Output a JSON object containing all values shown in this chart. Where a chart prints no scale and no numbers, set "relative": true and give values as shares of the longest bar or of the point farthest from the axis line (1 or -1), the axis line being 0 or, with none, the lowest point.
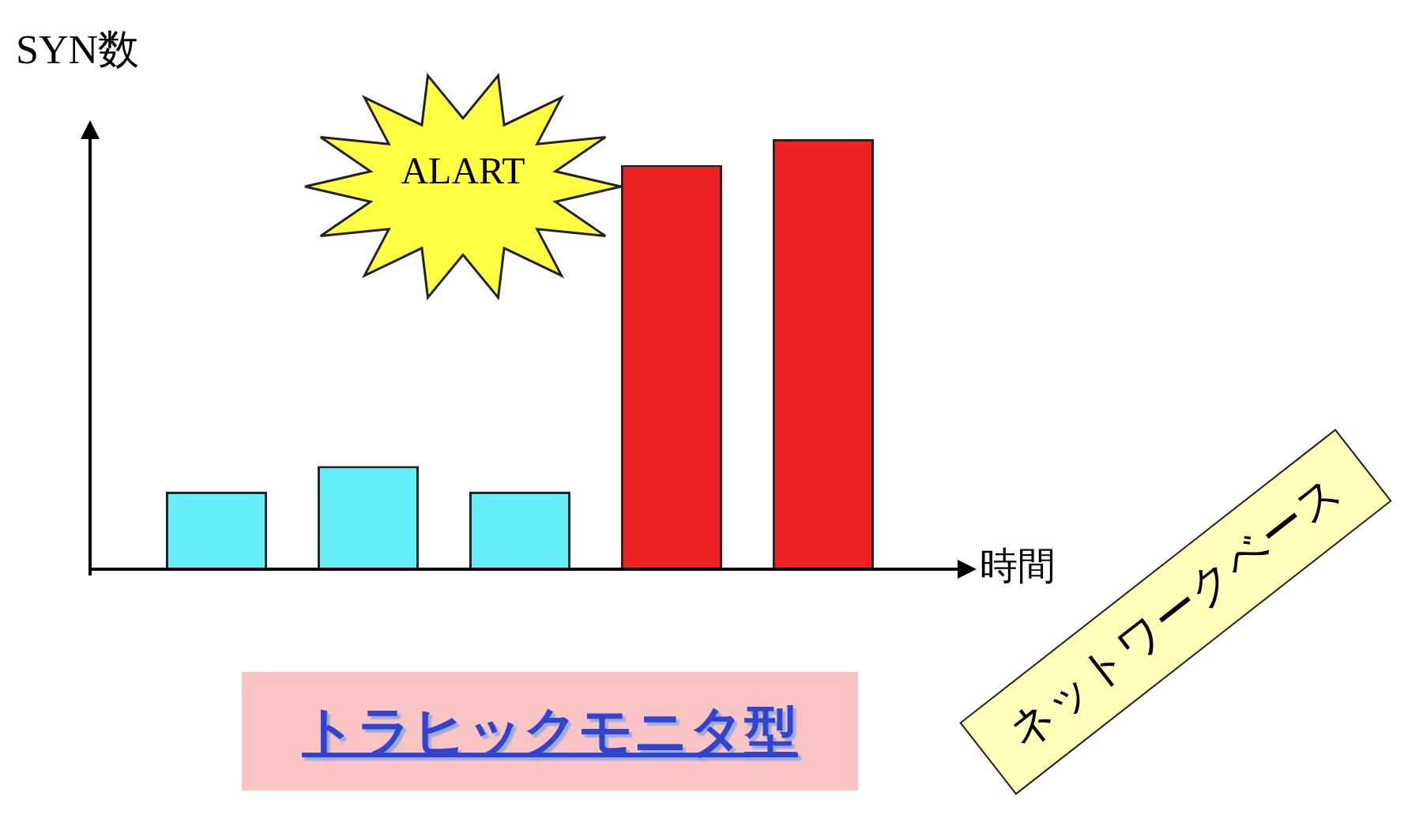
{
  "chart_data": {
    "type": "bar",
    "relative": true,
    "categories": [
      null,
      null,
      null,
      null,
      null
    ],
    "xlabel": "時間",
    "ylabel": "SYN数",
    "colors": [
      "#66eef8",
      "#66eef8",
      "#66eef8",
      "#ee2222",
      "#ee2222"
    ],
    "values": [
      0.18,
      0.24,
      0.18,
      0.94,
      1
    ],
    "legend": false,
    "annotations": [
      "ALART",
      "トラヒックモニタ型",
      "ネットワークベース"
    ]
  }
}
